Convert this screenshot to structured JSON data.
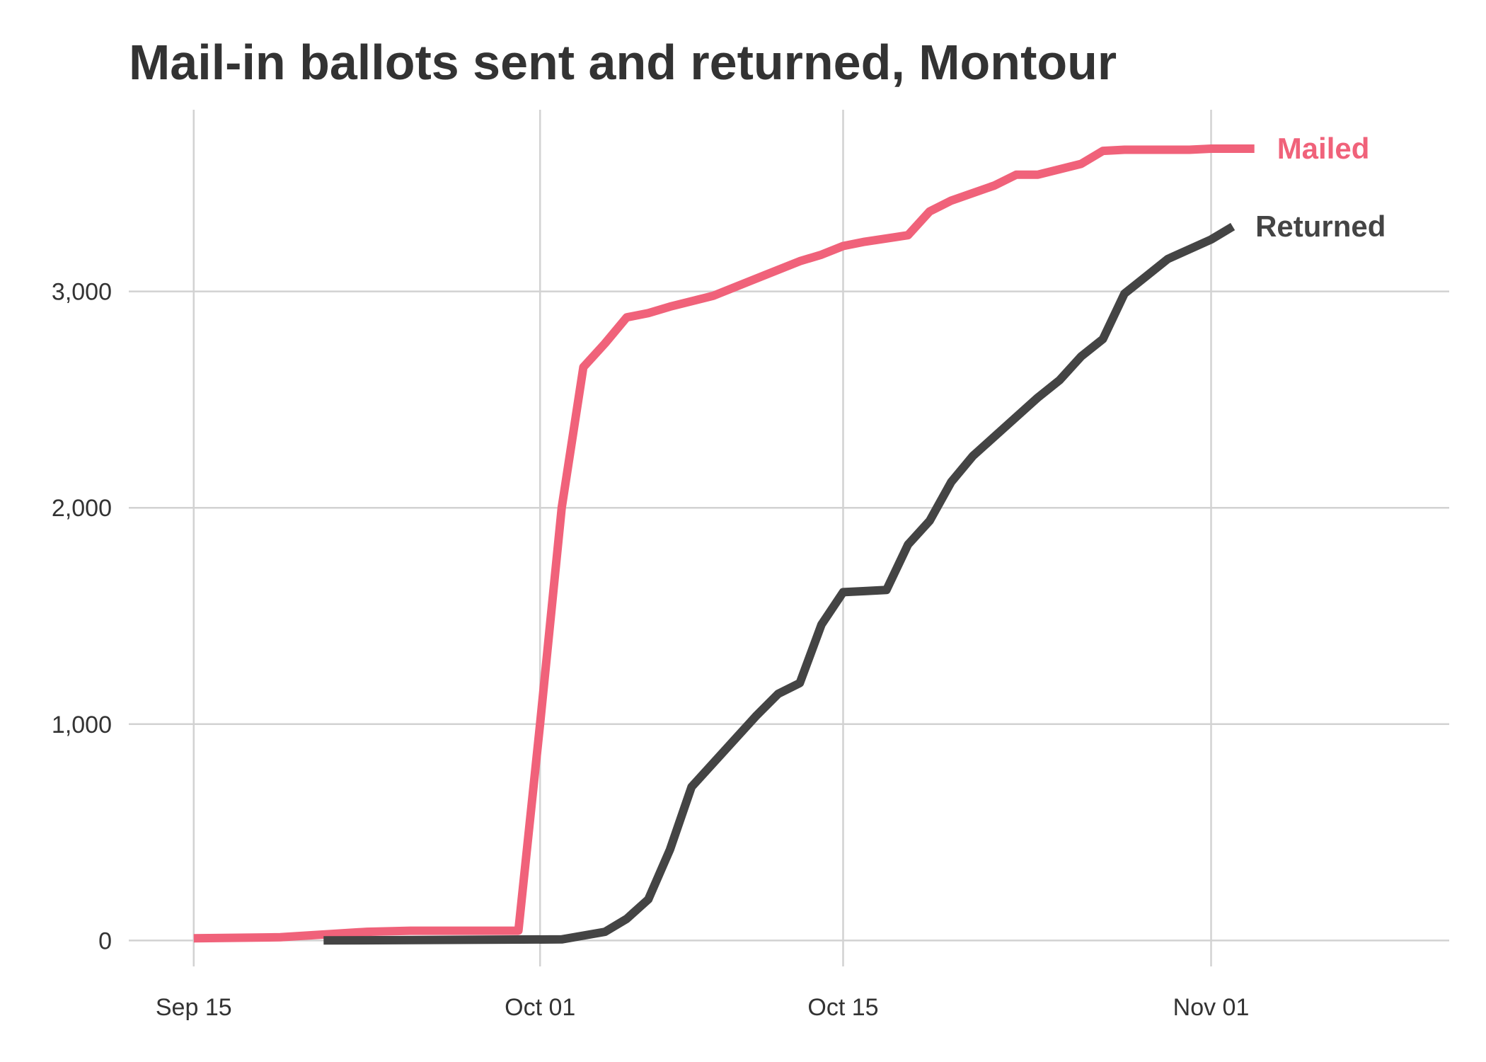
{
  "chart_data": {
    "type": "line",
    "title": "Mail-in ballots sent and returned, Montour",
    "xlabel": "",
    "ylabel": "",
    "x_ticks": [
      {
        "date": "2020-09-15",
        "label": "Sep 15"
      },
      {
        "date": "2020-10-01",
        "label": "Oct 01"
      },
      {
        "date": "2020-10-15",
        "label": "Oct 15"
      },
      {
        "date": "2020-11-01",
        "label": "Nov 01"
      }
    ],
    "y_ticks": [
      {
        "value": 0,
        "label": "0"
      },
      {
        "value": 1000,
        "label": "1,000"
      },
      {
        "value": 2000,
        "label": "2,000"
      },
      {
        "value": 3000,
        "label": "3,000"
      }
    ],
    "xlim": [
      "2020-09-12",
      "2020-11-12"
    ],
    "ylim": [
      -120,
      3840
    ],
    "grid": true,
    "legend": "direct labels at line ends",
    "series": [
      {
        "name": "Mailed",
        "color": "#f0627a",
        "points": [
          [
            "2020-09-15",
            10
          ],
          [
            "2020-09-19",
            15
          ],
          [
            "2020-09-23",
            40
          ],
          [
            "2020-09-25",
            45
          ],
          [
            "2020-09-30",
            45
          ],
          [
            "2020-10-01",
            1000
          ],
          [
            "2020-10-02",
            2000
          ],
          [
            "2020-10-03",
            2650
          ],
          [
            "2020-10-04",
            2760
          ],
          [
            "2020-10-05",
            2880
          ],
          [
            "2020-10-06",
            2900
          ],
          [
            "2020-10-07",
            2930
          ],
          [
            "2020-10-09",
            2980
          ],
          [
            "2020-10-11",
            3060
          ],
          [
            "2020-10-13",
            3140
          ],
          [
            "2020-10-14",
            3170
          ],
          [
            "2020-10-15",
            3210
          ],
          [
            "2020-10-16",
            3230
          ],
          [
            "2020-10-18",
            3260
          ],
          [
            "2020-10-19",
            3370
          ],
          [
            "2020-10-20",
            3420
          ],
          [
            "2020-10-22",
            3490
          ],
          [
            "2020-10-23",
            3540
          ],
          [
            "2020-10-24",
            3540
          ],
          [
            "2020-10-26",
            3590
          ],
          [
            "2020-10-27",
            3650
          ],
          [
            "2020-10-28",
            3655
          ],
          [
            "2020-10-31",
            3655
          ],
          [
            "2020-11-01",
            3660
          ],
          [
            "2020-11-03",
            3660
          ]
        ]
      },
      {
        "name": "Returned",
        "color": "#444444",
        "points": [
          [
            "2020-09-21",
            0
          ],
          [
            "2020-10-02",
            5
          ],
          [
            "2020-10-04",
            40
          ],
          [
            "2020-10-05",
            100
          ],
          [
            "2020-10-06",
            190
          ],
          [
            "2020-10-07",
            420
          ],
          [
            "2020-10-08",
            710
          ],
          [
            "2020-10-09",
            820
          ],
          [
            "2020-10-10",
            930
          ],
          [
            "2020-10-11",
            1040
          ],
          [
            "2020-10-12",
            1140
          ],
          [
            "2020-10-13",
            1190
          ],
          [
            "2020-10-14",
            1460
          ],
          [
            "2020-10-15",
            1610
          ],
          [
            "2020-10-16",
            1615
          ],
          [
            "2020-10-17",
            1620
          ],
          [
            "2020-10-18",
            1830
          ],
          [
            "2020-10-19",
            1940
          ],
          [
            "2020-10-20",
            2120
          ],
          [
            "2020-10-21",
            2240
          ],
          [
            "2020-10-22",
            2330
          ],
          [
            "2020-10-23",
            2420
          ],
          [
            "2020-10-24",
            2510
          ],
          [
            "2020-10-25",
            2590
          ],
          [
            "2020-10-26",
            2700
          ],
          [
            "2020-10-27",
            2780
          ],
          [
            "2020-10-28",
            2990
          ],
          [
            "2020-10-29",
            3070
          ],
          [
            "2020-10-30",
            3150
          ],
          [
            "2020-11-01",
            3240
          ],
          [
            "2020-11-02",
            3300
          ]
        ]
      }
    ]
  }
}
